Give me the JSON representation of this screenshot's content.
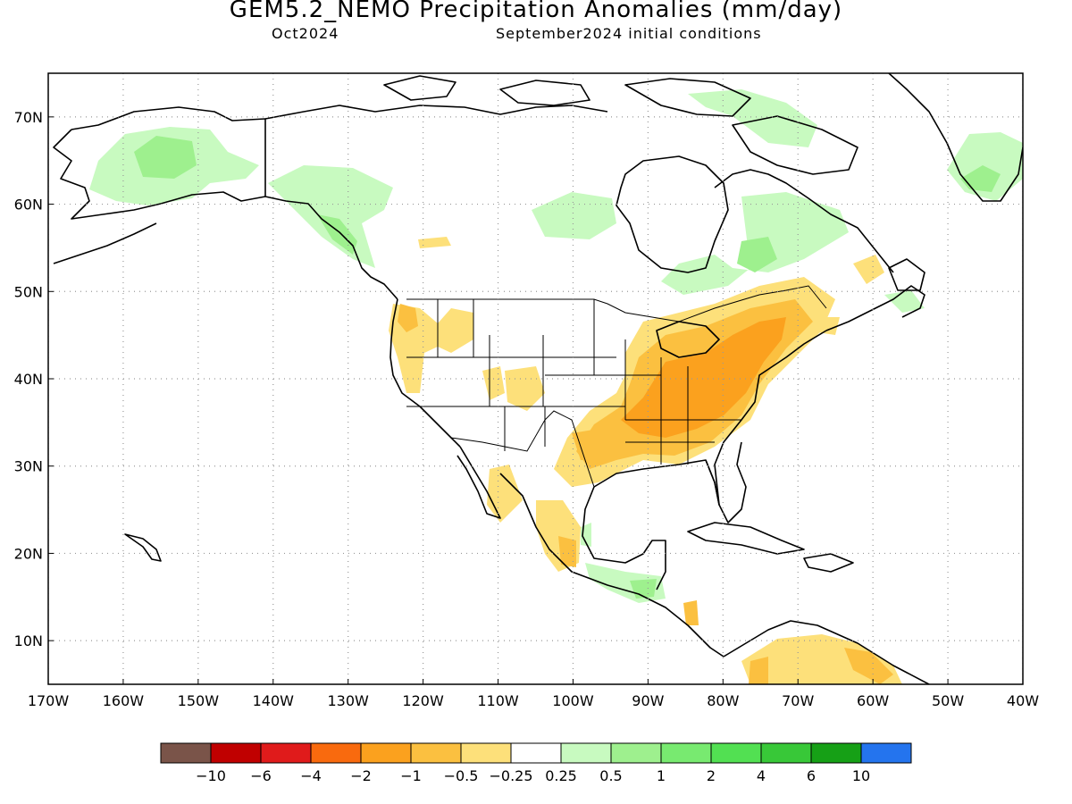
{
  "header": {
    "title": "GEM5.2_NEMO Precipitation Anomalies (mm/day)",
    "target_month": "Oct2024",
    "init_conditions": "September2024 initial conditions"
  },
  "map": {
    "lat_ticks": [
      {
        "value": 70,
        "label": "70N"
      },
      {
        "value": 60,
        "label": "60N"
      },
      {
        "value": 50,
        "label": "50N"
      },
      {
        "value": 40,
        "label": "40N"
      },
      {
        "value": 30,
        "label": "30N"
      },
      {
        "value": 20,
        "label": "20N"
      },
      {
        "value": 10,
        "label": "10N"
      }
    ],
    "lon_ticks": [
      {
        "value": -170,
        "label": "170W"
      },
      {
        "value": -160,
        "label": "160W"
      },
      {
        "value": -150,
        "label": "150W"
      },
      {
        "value": -140,
        "label": "140W"
      },
      {
        "value": -130,
        "label": "130W"
      },
      {
        "value": -120,
        "label": "120W"
      },
      {
        "value": -110,
        "label": "110W"
      },
      {
        "value": -100,
        "label": "100W"
      },
      {
        "value": -90,
        "label": "90W"
      },
      {
        "value": -80,
        "label": "80W"
      },
      {
        "value": -70,
        "label": "70W"
      },
      {
        "value": -60,
        "label": "60W"
      },
      {
        "value": -50,
        "label": "50W"
      },
      {
        "value": -40,
        "label": "40W"
      }
    ],
    "lon_range": [
      -170,
      -40
    ],
    "lat_range": [
      5,
      75
    ],
    "grid": "dotted"
  },
  "colorbar": {
    "colors": [
      "#7a5449",
      "#c00000",
      "#e01b1b",
      "#f96a0e",
      "#fba11e",
      "#fbc040",
      "#fde07a",
      "#ffffff",
      "#c8fac0",
      "#9ef08e",
      "#78ea70",
      "#52e052",
      "#38c838",
      "#16a016",
      "#2474ee"
    ],
    "labels": [
      "-10",
      "-6",
      "-4",
      "-2",
      "-1",
      "-0.5",
      "-0.25",
      "0.25",
      "0.5",
      "1",
      "2",
      "4",
      "6",
      "10"
    ]
  },
  "colors": {
    "dry_light": "#fde07a",
    "dry_medium": "#fbc040",
    "dry_strong": "#fba11e",
    "wet_light": "#c8fac0",
    "wet_medium": "#9ef08e",
    "wet_strong": "#78ea70"
  }
}
